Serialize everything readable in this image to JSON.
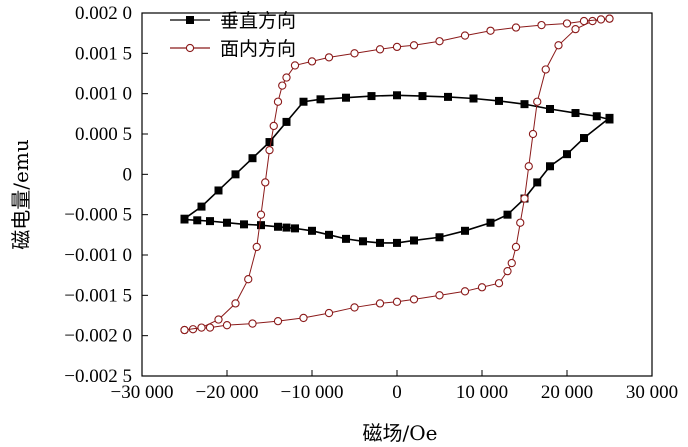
{
  "chart_data": {
    "type": "scatter",
    "xlabel": "磁场/Oe",
    "ylabel": "磁电量/emu",
    "xlim": [
      -30000,
      30000
    ],
    "ylim": [
      -0.0025,
      0.002
    ],
    "x_ticks": [
      -30000,
      -20000,
      -10000,
      0,
      10000,
      20000,
      30000
    ],
    "x_tick_labels": [
      "−30 000",
      "−20 000",
      "−10 000",
      "0",
      "10 000",
      "20 000",
      "30 000"
    ],
    "y_ticks": [
      0.002,
      0.0015,
      0.001,
      0.0005,
      0,
      -0.0005,
      -0.001,
      -0.0015,
      -0.002,
      -0.0025
    ],
    "y_tick_labels": [
      "0.002 0",
      "0.001 5",
      "0.001 0",
      "0.000 5",
      "0",
      "−0.000 5",
      "−0.001 0",
      "−0.001 5",
      "−0.002 0",
      "−0.002 5"
    ],
    "grid": false,
    "legend_position": "top-left",
    "series": [
      {
        "name": "垂直方向",
        "marker": "filled-square",
        "color": "#000000",
        "branches": [
          {
            "x": [
              25000,
              22000,
              20000,
              18000,
              16500,
              15000,
              13000,
              11000,
              8000,
              5000,
              2000,
              0,
              -2000,
              -4000,
              -6000,
              -8000,
              -10000,
              -12000,
              -13000,
              -14000,
              -16000,
              -18000,
              -20000,
              -22000,
              -23500,
              -25000
            ],
            "y": [
              0.0007,
              0.00045,
              0.00025,
              0.0001,
              -0.0001,
              -0.0003,
              -0.0005,
              -0.0006,
              -0.0007,
              -0.00078,
              -0.00082,
              -0.00085,
              -0.00085,
              -0.00083,
              -0.0008,
              -0.00075,
              -0.0007,
              -0.00067,
              -0.00066,
              -0.00065,
              -0.00063,
              -0.00062,
              -0.0006,
              -0.00058,
              -0.00057,
              -0.00056
            ]
          },
          {
            "x": [
              -25000,
              -23000,
              -21000,
              -19000,
              -17000,
              -15000,
              -13000,
              -11000,
              -9000,
              -6000,
              -3000,
              0,
              3000,
              6000,
              9000,
              12000,
              15000,
              18000,
              21000,
              23500,
              25000
            ],
            "y": [
              -0.00055,
              -0.0004,
              -0.0002,
              0.0,
              0.0002,
              0.0004,
              0.00065,
              0.0009,
              0.00093,
              0.00095,
              0.00097,
              0.00098,
              0.00097,
              0.00096,
              0.00094,
              0.00091,
              0.00087,
              0.00081,
              0.00076,
              0.00072,
              0.00068
            ]
          }
        ]
      },
      {
        "name": "面内方向",
        "marker": "open-circle",
        "color": "#8b1a1a",
        "branches": [
          {
            "x": [
              25000,
              23000,
              21000,
              19000,
              17500,
              16500,
              16000,
              15500,
              15000,
              14500,
              14000,
              13500,
              13000,
              12000,
              10000,
              8000,
              5000,
              2000,
              0,
              -2000,
              -5000,
              -8000,
              -11000,
              -14000,
              -17000,
              -20000,
              -22000,
              -24000,
              -25000
            ],
            "y": [
              0.00193,
              0.0019,
              0.0018,
              0.0016,
              0.0013,
              0.0009,
              0.0005,
              0.0001,
              -0.0003,
              -0.0006,
              -0.0009,
              -0.0011,
              -0.0012,
              -0.00135,
              -0.0014,
              -0.00145,
              -0.0015,
              -0.00155,
              -0.00158,
              -0.0016,
              -0.00165,
              -0.00172,
              -0.00178,
              -0.00182,
              -0.00185,
              -0.00187,
              -0.0019,
              -0.00192,
              -0.00193
            ]
          },
          {
            "x": [
              -25000,
              -23000,
              -21000,
              -19000,
              -17500,
              -16500,
              -16000,
              -15500,
              -15000,
              -14500,
              -14000,
              -13500,
              -13000,
              -12000,
              -10000,
              -8000,
              -5000,
              -2000,
              0,
              2000,
              5000,
              8000,
              11000,
              14000,
              17000,
              20000,
              22000,
              24000,
              25000
            ],
            "y": [
              -0.00193,
              -0.0019,
              -0.0018,
              -0.0016,
              -0.0013,
              -0.0009,
              -0.0005,
              -0.0001,
              0.0003,
              0.0006,
              0.0009,
              0.0011,
              0.0012,
              0.00135,
              0.0014,
              0.00145,
              0.0015,
              0.00155,
              0.00158,
              0.0016,
              0.00165,
              0.00172,
              0.00178,
              0.00182,
              0.00185,
              0.00187,
              0.0019,
              0.00192,
              0.00193
            ]
          }
        ]
      }
    ]
  }
}
